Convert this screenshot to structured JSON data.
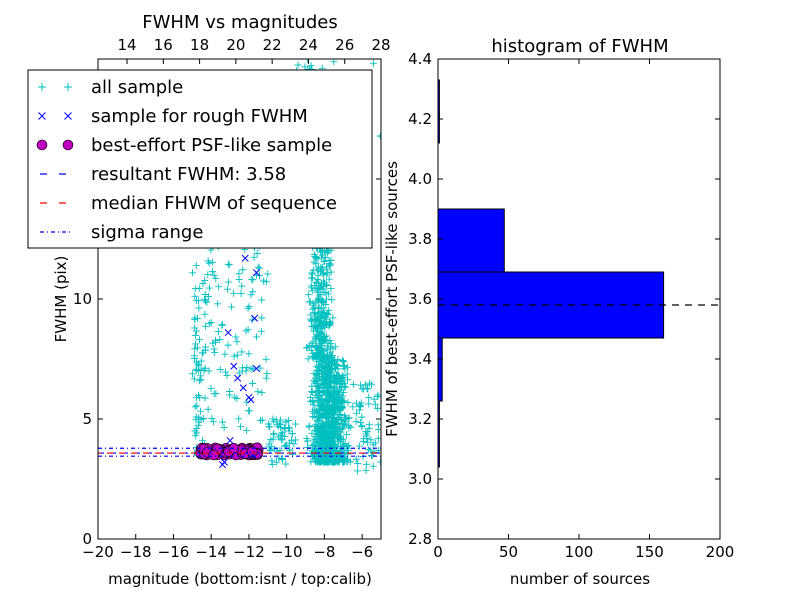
{
  "chart_data": [
    {
      "type": "scatter",
      "title": "FWHM vs magnitudes",
      "xlabel": "magnitude (bottom:isnt / top:calib)",
      "ylabel": "FWHM (pix)",
      "xlim": [
        -20,
        -5
      ],
      "ylim": [
        0,
        20
      ],
      "x_ticks": [
        -20,
        -18,
        -16,
        -14,
        -12,
        -10,
        -8,
        -6
      ],
      "x_tick_labels": [
        "−20",
        "−18",
        "−16",
        "−14",
        "−12",
        "−10",
        "−8",
        "−6"
      ],
      "y_ticks": [
        0,
        5,
        10,
        15,
        20
      ],
      "y_tick_labels": [
        "0",
        "5",
        "10",
        "",
        ""
      ],
      "top_xlim": [
        12.4,
        28
      ],
      "top_ticks": [
        14,
        16,
        18,
        20,
        22,
        24,
        26,
        28
      ],
      "top_tick_labels": [
        "14",
        "16",
        "18",
        "20",
        "22",
        "24",
        "26",
        "28"
      ],
      "grid": false,
      "legend_position": "upper-left",
      "legend": [
        {
          "label": "all sample",
          "marker": "+",
          "color": "#00bfbf"
        },
        {
          "label": "sample for rough FWHM",
          "marker": "x",
          "color": "#0000ff"
        },
        {
          "label": "best-effort PSF-like sample",
          "marker": "o",
          "color": "#bf00bf"
        },
        {
          "label": "resultant FWHM: 3.58",
          "line": "dashed",
          "color": "#0000ff"
        },
        {
          "label": "median FHWM of sequence",
          "line": "dashed",
          "color": "#ff0000"
        },
        {
          "label": "sigma range",
          "line": "dashdot",
          "color": "#0000ff"
        }
      ],
      "hlines": [
        {
          "y": 3.58,
          "style": "dashed",
          "color": "#0000ff"
        },
        {
          "y": 3.58,
          "style": "dashed",
          "color": "#ff0000"
        },
        {
          "y": 3.78,
          "style": "dashdot",
          "color": "#0000ff"
        },
        {
          "y": 3.45,
          "style": "dashdot",
          "color": "#0000ff"
        }
      ],
      "series": [
        {
          "name": "sample for rough FWHM",
          "marker": "x",
          "color": "#0000ff",
          "points": [
            [
              -13.1,
              8.6
            ],
            [
              -12.2,
              11.7
            ],
            [
              -11.6,
              11.1
            ],
            [
              -11.7,
              9.2
            ],
            [
              -11.6,
              7.1
            ],
            [
              -12.8,
              7.2
            ],
            [
              -12.6,
              6.7
            ],
            [
              -12.3,
              6.3
            ],
            [
              -12.0,
              5.9
            ],
            [
              -11.9,
              5.8
            ],
            [
              -13.0,
              4.1
            ],
            [
              -13.3,
              3.2
            ],
            [
              -13.4,
              3.1
            ],
            [
              -11.8,
              3.5
            ]
          ]
        },
        {
          "name": "best-effort PSF-like sample",
          "marker": "o",
          "color": "#bf00bf",
          "x_range": [
            -14.6,
            -11.5
          ],
          "y_range": [
            3.5,
            3.8
          ],
          "n": 80
        }
      ],
      "scatter_all": {
        "name": "all sample",
        "marker": "+",
        "color": "#00bfbf",
        "groups": [
          {
            "x_range": [
              -9.5,
              -6.0
            ],
            "y_range": [
              3.2,
              7.5
            ],
            "n": 900
          },
          {
            "x_range": [
              -9.3,
              -7.0
            ],
            "y_range": [
              7.5,
              12.5
            ],
            "n": 300
          },
          {
            "x_range": [
              -9.5,
              -7.5
            ],
            "y_range": [
              12.5,
              20
            ],
            "n": 170
          },
          {
            "x_range": [
              -15.0,
              -11.0
            ],
            "y_range": [
              4.5,
              12.5
            ],
            "n": 130
          },
          {
            "x_range": [
              -14.9,
              -14.3
            ],
            "y_range": [
              3.5,
              11
            ],
            "n": 60
          },
          {
            "x_range": [
              -11.0,
              -9.5
            ],
            "y_range": [
              3.0,
              5.0
            ],
            "n": 60
          },
          {
            "x_range": [
              -6.5,
              -5.0
            ],
            "y_range": [
              2.8,
              6.5
            ],
            "n": 60
          },
          {
            "x_range": [
              -7.5,
              -5.0
            ],
            "y_range": [
              13,
              20
            ],
            "n": 15
          }
        ]
      }
    },
    {
      "type": "bar",
      "orientation": "horizontal",
      "title": "histogram of FWHM",
      "xlabel": "number of sources",
      "ylabel": "FWHM of best-effort PSF-like sources",
      "xlim": [
        0,
        200
      ],
      "ylim": [
        2.8,
        4.4
      ],
      "x_ticks": [
        0,
        50,
        100,
        150,
        200
      ],
      "x_tick_labels": [
        "0",
        "50",
        "100",
        "150",
        "200"
      ],
      "y_ticks": [
        2.8,
        3.0,
        3.2,
        3.4,
        3.6,
        3.8,
        4.0,
        4.2,
        4.4
      ],
      "y_tick_labels": [
        "2.8",
        "3.0",
        "3.2",
        "3.4",
        "3.6",
        "3.8",
        "4.0",
        "4.2",
        "4.4"
      ],
      "bar_color": "#0000ff",
      "bars": [
        {
          "y0": 3.04,
          "y1": 3.26,
          "value": 1
        },
        {
          "y0": 3.26,
          "y1": 3.47,
          "value": 3
        },
        {
          "y0": 3.47,
          "y1": 3.69,
          "value": 160
        },
        {
          "y0": 3.69,
          "y1": 3.9,
          "value": 47
        },
        {
          "y0": 3.9,
          "y1": 4.12,
          "value": 0
        },
        {
          "y0": 4.12,
          "y1": 4.33,
          "value": 1
        }
      ],
      "hlines": [
        {
          "y": 3.58,
          "style": "dashed",
          "color": "#000000"
        }
      ]
    }
  ]
}
